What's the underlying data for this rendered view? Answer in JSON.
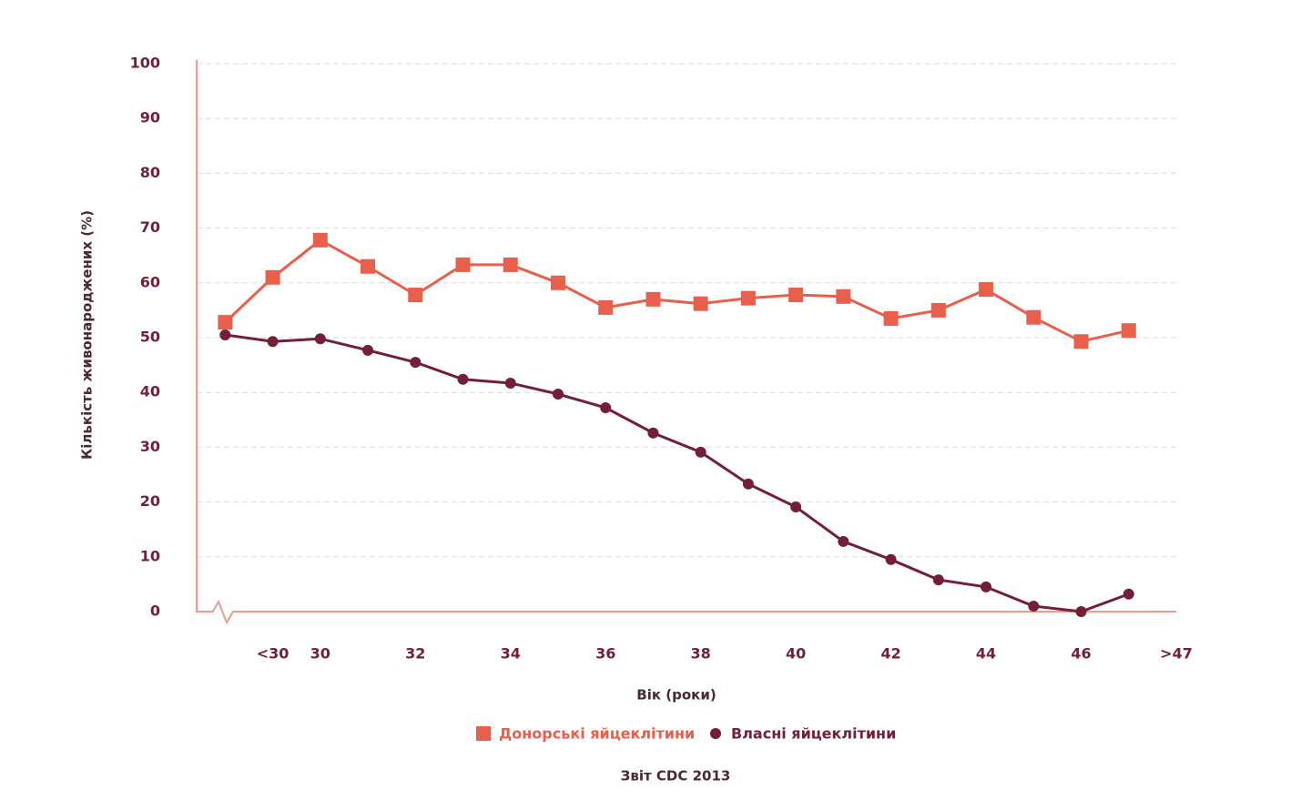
{
  "chart_data": {
    "type": "line",
    "y_label": "Кількість живонароджених (%)",
    "x_label": "Вік (роки)",
    "source": "Звіт CDC 2013",
    "x": [
      28,
      29,
      30,
      31,
      32,
      33,
      34,
      35,
      36,
      37,
      38,
      39,
      40,
      41,
      42,
      43,
      44,
      45,
      46,
      47
    ],
    "series": [
      {
        "name": "Донорські яйцеклітини",
        "color": "#e8604c",
        "marker": "square",
        "values": [
          52.8,
          61,
          67.8,
          63,
          57.8,
          63.3,
          63.3,
          60,
          55.5,
          57,
          56.2,
          57.2,
          57.8,
          57.5,
          53.5,
          55,
          58.8,
          53.7,
          49.3,
          51.3
        ]
      },
      {
        "name": "Власні яйцеклітини",
        "color": "#731f38",
        "marker": "circle",
        "values": [
          50.5,
          49.3,
          49.8,
          47.7,
          45.5,
          42.4,
          41.7,
          39.7,
          37.2,
          32.6,
          29.1,
          23.3,
          19.1,
          12.8,
          9.5,
          5.8,
          4.5,
          1,
          0,
          3.2
        ]
      }
    ],
    "xlim": [
      27.4,
      48
    ],
    "xticks": [
      {
        "value": 29,
        "label": "<30"
      },
      30,
      32,
      34,
      36,
      38,
      40,
      42,
      44,
      46,
      {
        "value": 48,
        "label": ">47"
      }
    ],
    "ylim": [
      0,
      100
    ],
    "yticks": [
      0,
      10,
      20,
      30,
      40,
      50,
      60,
      70,
      80,
      90,
      100
    ],
    "grid": true
  }
}
